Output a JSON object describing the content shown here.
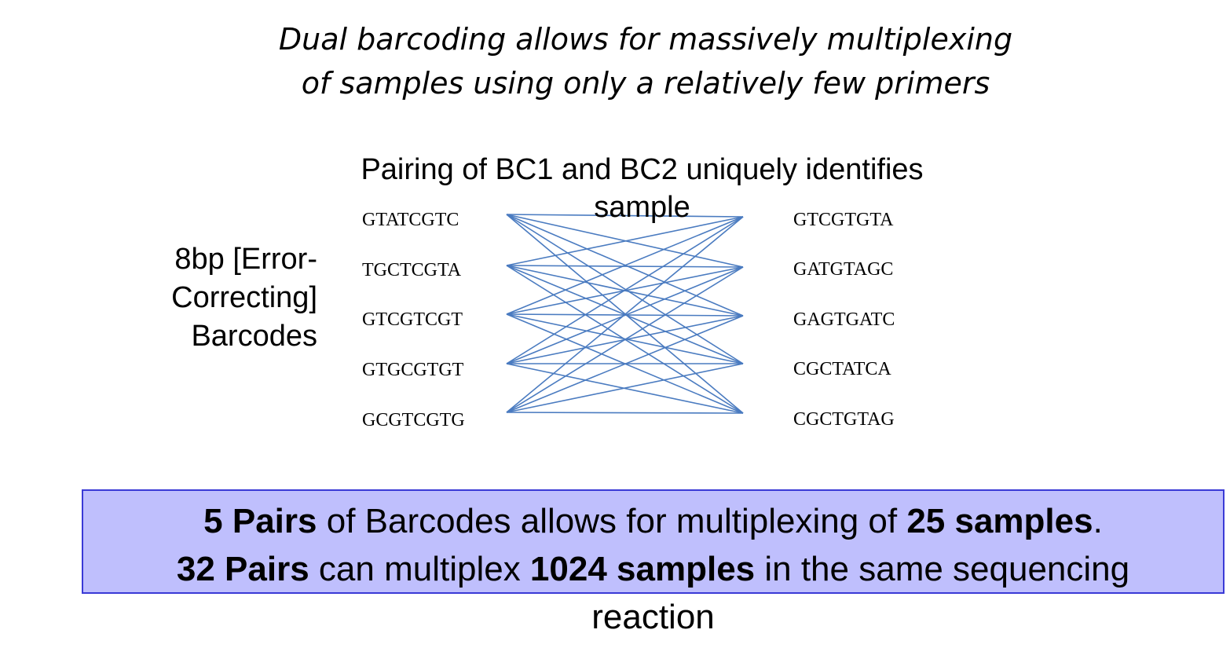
{
  "title": {
    "line1": "Dual barcoding allows for massively multiplexing",
    "line2": "of samples using only a relatively few primers"
  },
  "pairing_caption": {
    "line1": "Pairing of BC1 and BC2 uniquely identifies",
    "line2": "sample"
  },
  "side_label": {
    "line1": "8bp [Error-",
    "line2": "Correcting]",
    "line3": "Barcodes"
  },
  "bc1": [
    "GTATCGTC",
    "TGCTCGTA",
    "GTCGTCGT",
    "GTGCGTGT",
    "GCGTCGTG"
  ],
  "bc2": [
    "GTCGTGTA",
    "GATGTAGC",
    "GAGTGATC",
    "CGCTATCA",
    "CGCTGTAG"
  ],
  "line_color": "#4a7bc0",
  "summary": {
    "box_color": "#bfbffd",
    "border_color": "#3a3ad6",
    "line1": {
      "bold1": "5 Pairs",
      "text1": " of Barcodes allows for multiplexing of ",
      "bold2": "25 samples",
      "text2": "."
    },
    "line2": {
      "bold1": "32 Pairs",
      "text1": " can multiplex ",
      "bold2": "1024 samples",
      "text2": " in the same sequencing"
    },
    "line3": "reaction"
  }
}
